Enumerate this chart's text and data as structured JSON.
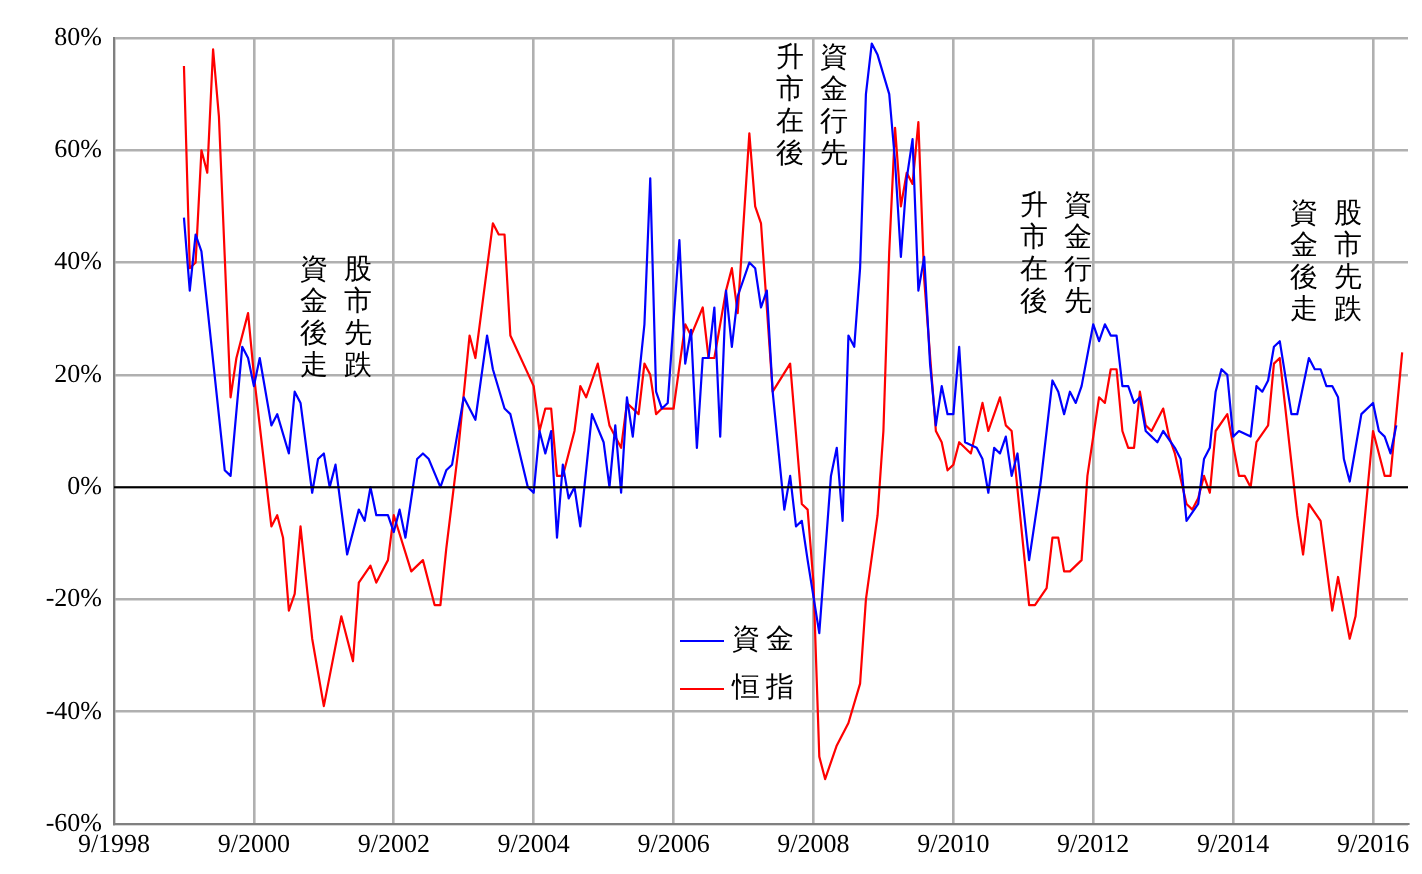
{
  "chart_data": {
    "type": "line",
    "xlim": [
      "1998-09",
      "2017-03"
    ],
    "xticks": [
      {
        "value": "1998-09",
        "label": "9/1998"
      },
      {
        "value": "2000-09",
        "label": "9/2000"
      },
      {
        "value": "2002-09",
        "label": "9/2002"
      },
      {
        "value": "2004-09",
        "label": "9/2004"
      },
      {
        "value": "2006-09",
        "label": "9/2006"
      },
      {
        "value": "2008-09",
        "label": "9/2008"
      },
      {
        "value": "2010-09",
        "label": "9/2010"
      },
      {
        "value": "2012-09",
        "label": "9/2012"
      },
      {
        "value": "2014-09",
        "label": "9/2014"
      },
      {
        "value": "2016-09",
        "label": "9/2016"
      }
    ],
    "ylim": [
      -60,
      80
    ],
    "yticks": [
      {
        "value": -60,
        "label": "-60%"
      },
      {
        "value": -40,
        "label": "-40%"
      },
      {
        "value": -20,
        "label": "-20%"
      },
      {
        "value": 0,
        "label": "0%"
      },
      {
        "value": 20,
        "label": "20%"
      },
      {
        "value": 40,
        "label": "40%"
      },
      {
        "value": 60,
        "label": "60%"
      },
      {
        "value": 80,
        "label": "80%"
      }
    ],
    "grid": true,
    "legend": "bottom",
    "marker": "none",
    "line_style": "solid",
    "ref_lines": [
      {
        "axis": "y",
        "value": 0,
        "color": "#000000"
      }
    ],
    "annotations": [
      "股市先跌資金後走",
      "資金行先升市在後",
      "資金行先升市在後",
      "股市先跌資金後走"
    ],
    "series": [
      {
        "name": "資金",
        "color": "#0000ff",
        "x": [
          "1999-09",
          "1999-10",
          "1999-11",
          "1999-12",
          "2000-04",
          "2000-05",
          "2000-07",
          "2000-08",
          "2000-09",
          "2000-10",
          "2000-12",
          "2001-01",
          "2001-03",
          "2001-04",
          "2001-05",
          "2001-07",
          "2001-08",
          "2001-09",
          "2001-10",
          "2001-11",
          "2002-01",
          "2002-03",
          "2002-04",
          "2002-05",
          "2002-06",
          "2002-08",
          "2002-09",
          "2002-10",
          "2002-11",
          "2003-01",
          "2003-02",
          "2003-03",
          "2003-05",
          "2003-06",
          "2003-07",
          "2003-09",
          "2003-11",
          "2004-01",
          "2004-02",
          "2004-04",
          "2004-05",
          "2004-08",
          "2004-09",
          "2004-10",
          "2004-11",
          "2004-12",
          "2005-01",
          "2005-02",
          "2005-03",
          "2005-04",
          "2005-05",
          "2005-07",
          "2005-09",
          "2005-10",
          "2005-11",
          "2005-12",
          "2006-01",
          "2006-02",
          "2006-04",
          "2006-05",
          "2006-06",
          "2006-07",
          "2006-08",
          "2006-10",
          "2006-11",
          "2006-12",
          "2007-01",
          "2007-02",
          "2007-03",
          "2007-04",
          "2007-05",
          "2007-06",
          "2007-07",
          "2007-08",
          "2007-10",
          "2007-11",
          "2007-12",
          "2008-01",
          "2008-02",
          "2008-04",
          "2008-05",
          "2008-06",
          "2008-07",
          "2008-08",
          "2008-10",
          "2008-12",
          "2009-01",
          "2009-02",
          "2009-03",
          "2009-04",
          "2009-05",
          "2009-06",
          "2009-07",
          "2009-08",
          "2009-10",
          "2009-11",
          "2009-12",
          "2010-01",
          "2010-02",
          "2010-03",
          "2010-04",
          "2010-05",
          "2010-06",
          "2010-07",
          "2010-08",
          "2010-09",
          "2010-10",
          "2010-11",
          "2011-01",
          "2011-02",
          "2011-03",
          "2011-04",
          "2011-05",
          "2011-06",
          "2011-07",
          "2011-08",
          "2011-10",
          "2011-12",
          "2012-02",
          "2012-03",
          "2012-04",
          "2012-05",
          "2012-06",
          "2012-07",
          "2012-09",
          "2012-10",
          "2012-11",
          "2012-12",
          "2013-01",
          "2013-02",
          "2013-03",
          "2013-04",
          "2013-05",
          "2013-06",
          "2013-07",
          "2013-08",
          "2013-09",
          "2013-11",
          "2013-12",
          "2014-01",
          "2014-03",
          "2014-04",
          "2014-05",
          "2014-06",
          "2014-07",
          "2014-08",
          "2014-09",
          "2014-10",
          "2014-12",
          "2015-01",
          "2015-02",
          "2015-03",
          "2015-04",
          "2015-05",
          "2015-07",
          "2015-08",
          "2015-10",
          "2015-11",
          "2015-12",
          "2016-01",
          "2016-02",
          "2016-03",
          "2016-04",
          "2016-05",
          "2016-07",
          "2016-09",
          "2016-10",
          "2016-11",
          "2016-12",
          "2017-01"
        ],
        "values": [
          48,
          35,
          45,
          42,
          3,
          2,
          25,
          23,
          18,
          23,
          11,
          13,
          6,
          17,
          15,
          -1,
          5,
          6,
          0,
          4,
          -12,
          -4,
          -6,
          0,
          -5,
          -5,
          -8,
          -4,
          -9,
          5,
          6,
          5,
          0,
          3,
          4,
          16,
          12,
          27,
          21,
          14,
          13,
          0,
          -1,
          10,
          6,
          10,
          -9,
          4,
          -2,
          0,
          -7,
          13,
          8,
          0,
          11,
          -1,
          16,
          9,
          29,
          55,
          17,
          14,
          15,
          44,
          22,
          28,
          7,
          23,
          23,
          32,
          9,
          35,
          25,
          34,
          40,
          39,
          32,
          35,
          17,
          -4,
          2,
          -7,
          -6,
          -13,
          -26,
          2,
          7,
          -6,
          27,
          25,
          39,
          70,
          79,
          77,
          70,
          58,
          41,
          55,
          62,
          35,
          41,
          22,
          11,
          18,
          13,
          13,
          25,
          8,
          7,
          5,
          -1,
          7,
          6,
          9,
          2,
          6,
          -13,
          1,
          19,
          17,
          13,
          17,
          15,
          18,
          29,
          26,
          29,
          27,
          27,
          18,
          18,
          15,
          16,
          10,
          9,
          8,
          10,
          7,
          5,
          -6,
          -3,
          5,
          7,
          17,
          21,
          20,
          9,
          10,
          9,
          18,
          17,
          19,
          25,
          26,
          13,
          13,
          23,
          21,
          21,
          18,
          18,
          16,
          5,
          1,
          13,
          15,
          10,
          9,
          6,
          11
        ]
      },
      {
        "name": "恒指",
        "color": "#ff0000",
        "x": [
          "1999-09",
          "1999-10",
          "1999-11",
          "1999-12",
          "2000-01",
          "2000-02",
          "2000-03",
          "2000-05",
          "2000-06",
          "2000-08",
          "2000-09",
          "2000-12",
          "2001-01",
          "2001-02",
          "2001-03",
          "2001-04",
          "2001-05",
          "2001-07",
          "2001-09",
          "2001-12",
          "2002-02",
          "2002-03",
          "2002-05",
          "2002-06",
          "2002-08",
          "2002-09",
          "2002-12",
          "2003-02",
          "2003-04",
          "2003-05",
          "2003-06",
          "2003-08",
          "2003-10",
          "2003-11",
          "2003-12",
          "2004-02",
          "2004-03",
          "2004-04",
          "2004-05",
          "2004-09",
          "2004-10",
          "2004-11",
          "2004-12",
          "2005-01",
          "2005-02",
          "2005-04",
          "2005-05",
          "2005-06",
          "2005-08",
          "2005-10",
          "2005-12",
          "2006-01",
          "2006-03",
          "2006-04",
          "2006-05",
          "2006-06",
          "2006-07",
          "2006-09",
          "2006-11",
          "2006-12",
          "2007-02",
          "2007-03",
          "2007-04",
          "2007-06",
          "2007-07",
          "2007-08",
          "2007-10",
          "2007-11",
          "2007-12",
          "2008-02",
          "2008-05",
          "2008-07",
          "2008-08",
          "2008-09",
          "2008-10",
          "2008-11",
          "2009-01",
          "2009-03",
          "2009-05",
          "2009-06",
          "2009-08",
          "2009-09",
          "2009-10",
          "2009-11",
          "2009-12",
          "2010-01",
          "2010-02",
          "2010-03",
          "2010-04",
          "2010-06",
          "2010-07",
          "2010-08",
          "2010-09",
          "2010-10",
          "2010-12",
          "2011-02",
          "2011-03",
          "2011-05",
          "2011-06",
          "2011-07",
          "2011-10",
          "2011-11",
          "2012-01",
          "2012-02",
          "2012-03",
          "2012-04",
          "2012-05",
          "2012-07",
          "2012-08",
          "2012-10",
          "2012-11",
          "2012-12",
          "2013-01",
          "2013-02",
          "2013-03",
          "2013-04",
          "2013-05",
          "2013-06",
          "2013-07",
          "2013-09",
          "2013-10",
          "2013-11",
          "2014-01",
          "2014-02",
          "2014-03",
          "2014-04",
          "2014-05",
          "2014-06",
          "2014-08",
          "2014-10",
          "2014-11",
          "2014-12",
          "2015-01",
          "2015-03",
          "2015-04",
          "2015-05",
          "2015-08",
          "2015-09",
          "2015-10",
          "2015-12",
          "2016-02",
          "2016-03",
          "2016-05",
          "2016-06",
          "2016-09",
          "2016-11",
          "2016-12",
          "2017-02"
        ],
        "values": [
          75,
          39,
          40,
          60,
          56,
          78,
          66,
          16,
          23,
          31,
          20,
          -7,
          -5,
          -9,
          -22,
          -19,
          -7,
          -27,
          -39,
          -23,
          -31,
          -17,
          -14,
          -17,
          -13,
          -5,
          -15,
          -13,
          -21,
          -21,
          -11,
          6,
          27,
          23,
          31,
          47,
          45,
          45,
          27,
          18,
          10,
          14,
          14,
          2,
          2,
          10,
          18,
          16,
          22,
          11,
          7,
          15,
          13,
          22,
          20,
          13,
          14,
          14,
          29,
          27,
          32,
          23,
          23,
          35,
          39,
          31,
          63,
          50,
          47,
          17,
          22,
          -3,
          -4,
          -17,
          -48,
          -52,
          -46,
          -42,
          -35,
          -20,
          -5,
          10,
          42,
          64,
          50,
          56,
          54,
          65,
          37,
          10,
          8,
          3,
          4,
          8,
          6,
          15,
          10,
          16,
          11,
          10,
          -21,
          -21,
          -18,
          -9,
          -9,
          -15,
          -15,
          -13,
          2,
          16,
          15,
          21,
          21,
          10,
          7,
          7,
          17,
          11,
          10,
          14,
          9,
          6,
          -3,
          -4,
          -2,
          2,
          -1,
          10,
          13,
          2,
          2,
          0,
          8,
          11,
          22,
          23,
          -5,
          -12,
          -3,
          -6,
          -22,
          -16,
          -27,
          -23,
          10,
          2,
          2,
          24
        ]
      }
    ]
  }
}
